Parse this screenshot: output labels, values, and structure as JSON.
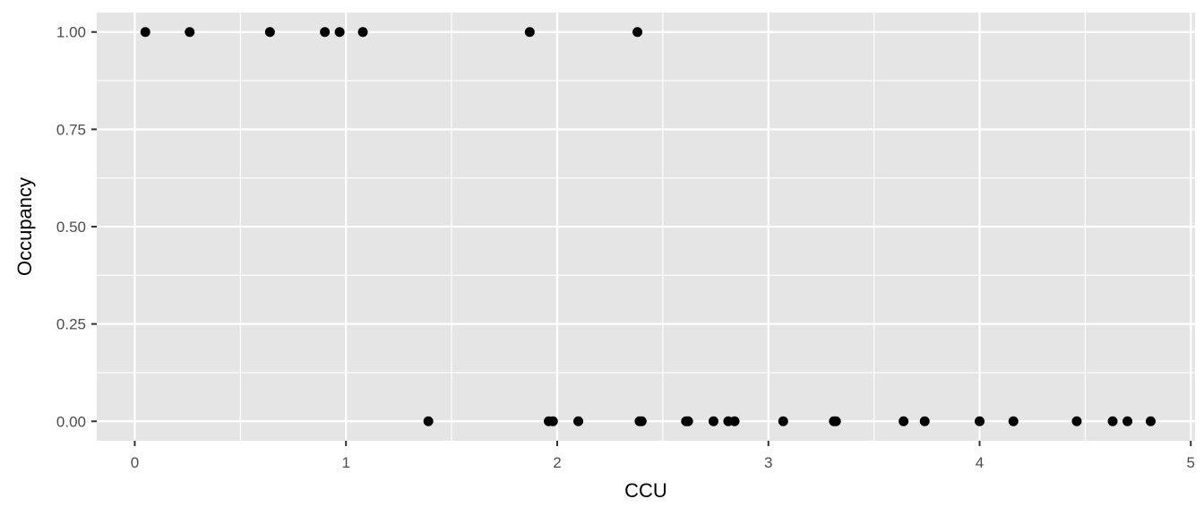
{
  "chart_data": {
    "type": "scatter",
    "title": "",
    "xlabel": "CCU",
    "ylabel": "Occupancy",
    "xlim": [
      -0.18,
      5.02
    ],
    "ylim": [
      -0.05,
      1.05
    ],
    "x_ticks": [
      0,
      1,
      2,
      3,
      4,
      5
    ],
    "x_tick_labels": [
      "0",
      "1",
      "2",
      "3",
      "4",
      "5"
    ],
    "y_ticks": [
      0,
      0.25,
      0.5,
      0.75,
      1
    ],
    "y_tick_labels": [
      "0.00",
      "0.25",
      "0.50",
      "0.75",
      "1.00"
    ],
    "grid": true,
    "legend": "none",
    "colors": {
      "panel": "#e5e5e5",
      "grid": "#ffffff",
      "point": "#000000",
      "tick": "#333333",
      "tick_label": "#4d4d4d"
    },
    "points": [
      {
        "x": 0.05,
        "y": 1
      },
      {
        "x": 0.26,
        "y": 1
      },
      {
        "x": 0.64,
        "y": 1
      },
      {
        "x": 0.9,
        "y": 1
      },
      {
        "x": 0.97,
        "y": 1
      },
      {
        "x": 1.08,
        "y": 1
      },
      {
        "x": 1.87,
        "y": 1
      },
      {
        "x": 2.38,
        "y": 1
      },
      {
        "x": 1.39,
        "y": 0
      },
      {
        "x": 1.96,
        "y": 0
      },
      {
        "x": 1.98,
        "y": 0
      },
      {
        "x": 2.1,
        "y": 0
      },
      {
        "x": 2.39,
        "y": 0
      },
      {
        "x": 2.4,
        "y": 0
      },
      {
        "x": 2.61,
        "y": 0
      },
      {
        "x": 2.62,
        "y": 0
      },
      {
        "x": 2.74,
        "y": 0
      },
      {
        "x": 2.81,
        "y": 0
      },
      {
        "x": 2.84,
        "y": 0
      },
      {
        "x": 3.07,
        "y": 0
      },
      {
        "x": 3.31,
        "y": 0
      },
      {
        "x": 3.32,
        "y": 0
      },
      {
        "x": 3.64,
        "y": 0
      },
      {
        "x": 3.74,
        "y": 0
      },
      {
        "x": 4.0,
        "y": 0
      },
      {
        "x": 4.16,
        "y": 0
      },
      {
        "x": 4.46,
        "y": 0
      },
      {
        "x": 4.63,
        "y": 0
      },
      {
        "x": 4.7,
        "y": 0
      },
      {
        "x": 4.81,
        "y": 0
      }
    ]
  }
}
